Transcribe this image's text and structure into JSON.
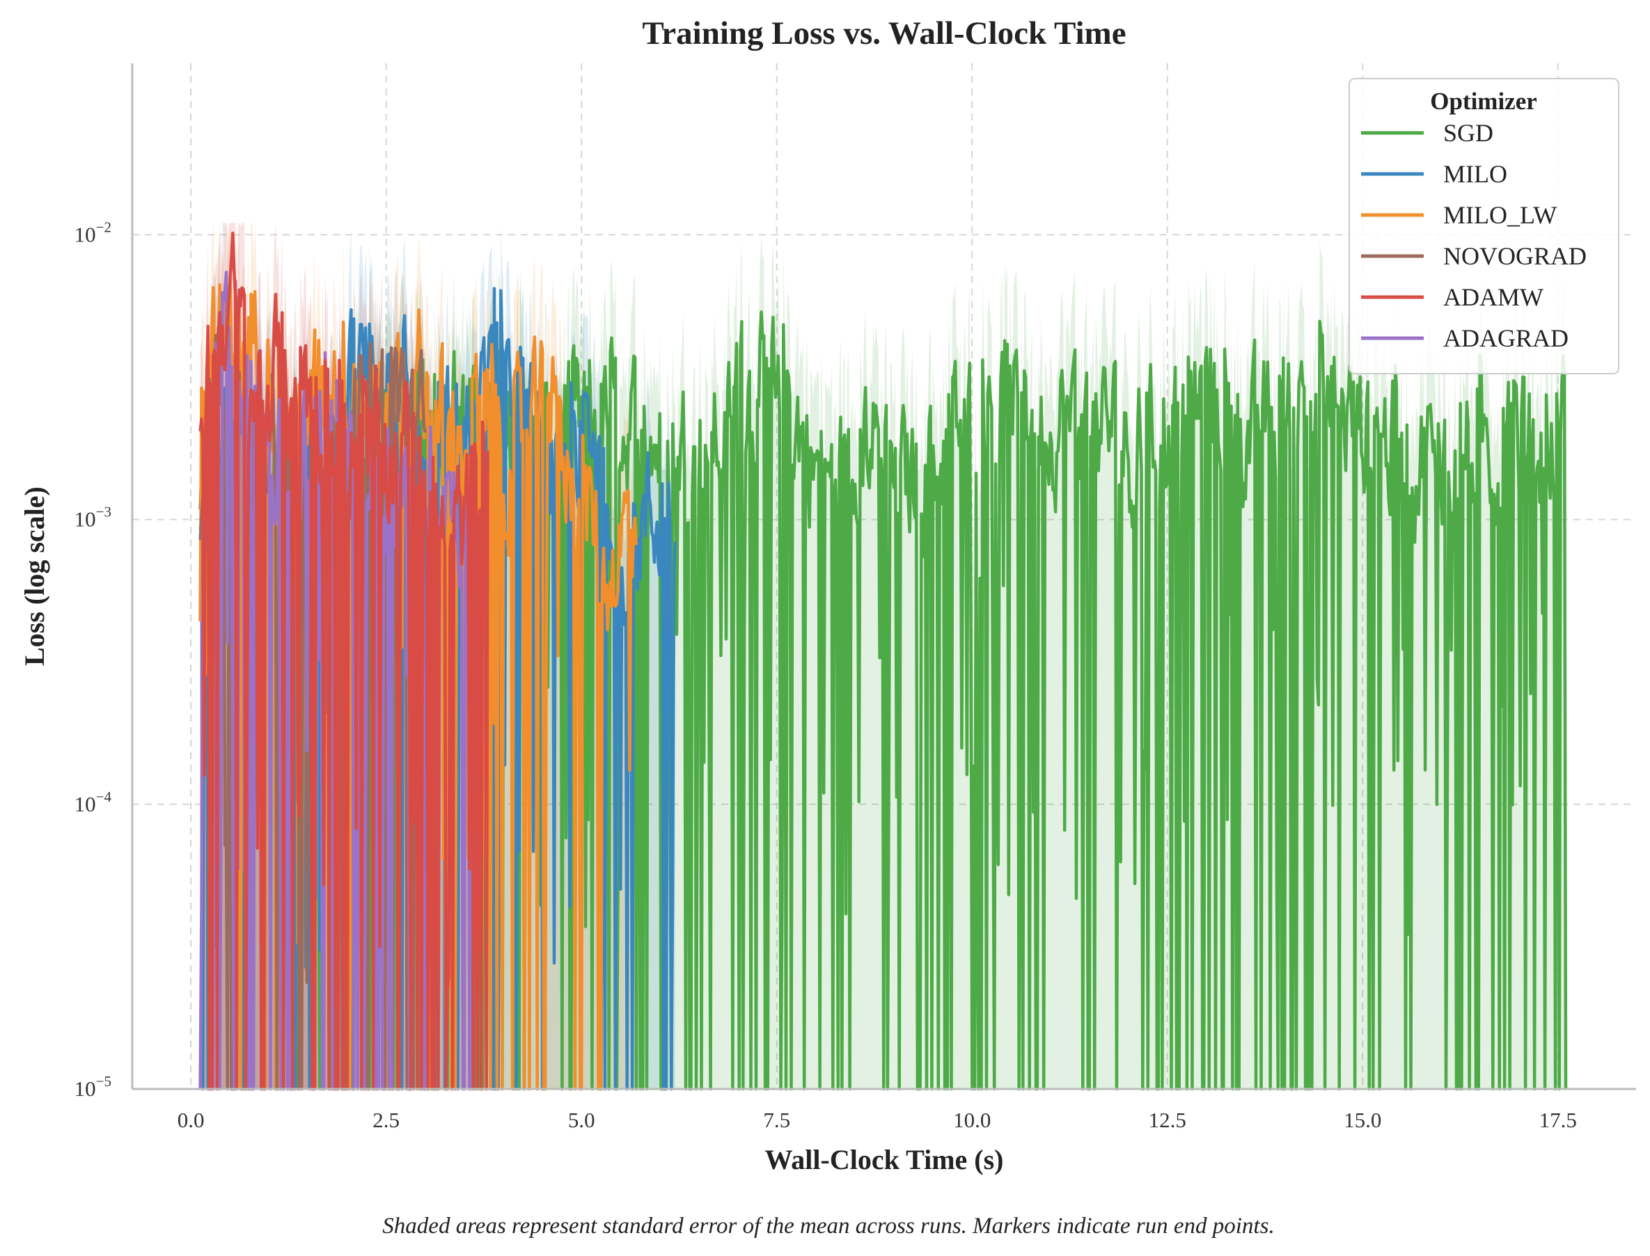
{
  "chart_data": {
    "type": "line",
    "title": "Training Loss vs. Wall-Clock Time",
    "xlabel": "Wall-Clock Time (s)",
    "ylabel": "Loss (log scale)",
    "caption": "Shaded areas represent standard error of the mean across runs. Markers indicate run end points.",
    "xlim": [
      -0.75,
      18.5
    ],
    "ylim": [
      1e-05,
      0.04
    ],
    "yscale": "log",
    "grid": true,
    "grid_style": "dashed",
    "x_ticks": [
      "0.0",
      "2.5",
      "5.0",
      "7.5",
      "10.0",
      "12.5",
      "15.0",
      "17.5"
    ],
    "x_tick_values": [
      0,
      2.5,
      5,
      7.5,
      10,
      12.5,
      15,
      17.5
    ],
    "y_ticks": [
      {
        "value": 1e-05,
        "base": "10",
        "exp": "−5"
      },
      {
        "value": 0.0001,
        "base": "10",
        "exp": "−4"
      },
      {
        "value": 0.001,
        "base": "10",
        "exp": "−3"
      },
      {
        "value": 0.01,
        "base": "10",
        "exp": "−2"
      }
    ],
    "legend": {
      "title": "Optimizer",
      "position": "top-right"
    },
    "series": [
      {
        "name": "SGD",
        "color": "#4daa47",
        "x_end": 17.6,
        "envelope": [
          0.0008,
          0.0012,
          0.0015,
          0.0015,
          0.0018,
          0.0022,
          0.0026,
          0.0019,
          0.0024,
          0.0017,
          0.0023,
          0.0022,
          0.0018,
          0.0018,
          0.0028,
          0.0027,
          0.0012,
          0.0022,
          0.0013,
          0.0018,
          0.0026,
          0.0025,
          0.0022,
          0.0023,
          0.0017,
          0.0022,
          0.0029,
          0.0019,
          0.0026,
          0.0025,
          0.0021,
          0.0016,
          0.0019,
          0.0018,
          0.0018,
          0.002
        ]
      },
      {
        "name": "MILO",
        "color": "#3a87c0",
        "x_end": 6.2,
        "envelope": [
          0.0009,
          0.0025,
          0.002,
          0.0014,
          0.0011,
          0.0018,
          0.0035,
          0.0032,
          0.0015,
          0.0019,
          0.0022,
          0.0048,
          0.0015,
          0.0018,
          0.0022,
          0.0008,
          0.001,
          0.0012
        ]
      },
      {
        "name": "MILO_LW",
        "color": "#f28e2b",
        "x_end": 5.7,
        "envelope": [
          0.0025,
          0.005,
          0.0042,
          0.0016,
          0.003,
          0.0028,
          0.0022,
          0.0032,
          0.0018,
          0.0025,
          0.0016,
          0.0022,
          0.0015,
          0.0006,
          0.0011
        ]
      },
      {
        "name": "NOVOGRAD",
        "color": "#9c6b5e",
        "x_end": 3.0,
        "envelope": [
          0.0012,
          0.004,
          0.0022,
          0.0018,
          0.0012,
          0.0015,
          0.0019,
          0.0026,
          0.0028,
          0.0018
        ]
      },
      {
        "name": "ADAMW",
        "color": "#d94b45",
        "x_end": 3.8,
        "envelope": [
          0.0025,
          0.006,
          0.0028,
          0.0032,
          0.003,
          0.0025,
          0.0018,
          0.002,
          0.0015,
          0.001,
          0.0009,
          0.0012
        ]
      },
      {
        "name": "ADAGRAD",
        "color": "#9a73c8",
        "x_end": 3.6,
        "envelope": [
          0.001,
          0.0042,
          0.0028,
          0.0015,
          0.0018,
          0.002,
          0.0012,
          0.0016,
          0.001,
          0.0015,
          0.0007
        ]
      }
    ]
  }
}
